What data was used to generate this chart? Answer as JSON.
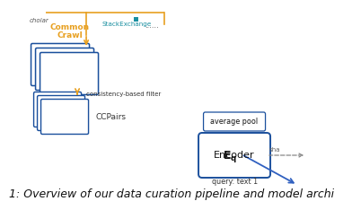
{
  "bg_color": "#ffffff",
  "title_text": "1: Overview of our data curation pipeline and model archi",
  "title_fontsize": 9,
  "title_color": "#111111",
  "scholar_text": "cholar",
  "common_crawl_text": "Common\nCrawl",
  "stack_exchange_text": "StackExchange",
  "dots_text": "......",
  "ccpairs_text": "CCPairs",
  "filter_text": "consistency-based filter",
  "avg_pool_text": "average pool",
  "encoder_text": "Encoder",
  "query_text": "query: text 1",
  "shared_text": "sha",
  "orange_color": "#E8A020",
  "blue_color": "#1A4F9C",
  "stack_blue": "#1A8FA0",
  "arrow_blue": "#3060C0",
  "gray_color": "#888888"
}
